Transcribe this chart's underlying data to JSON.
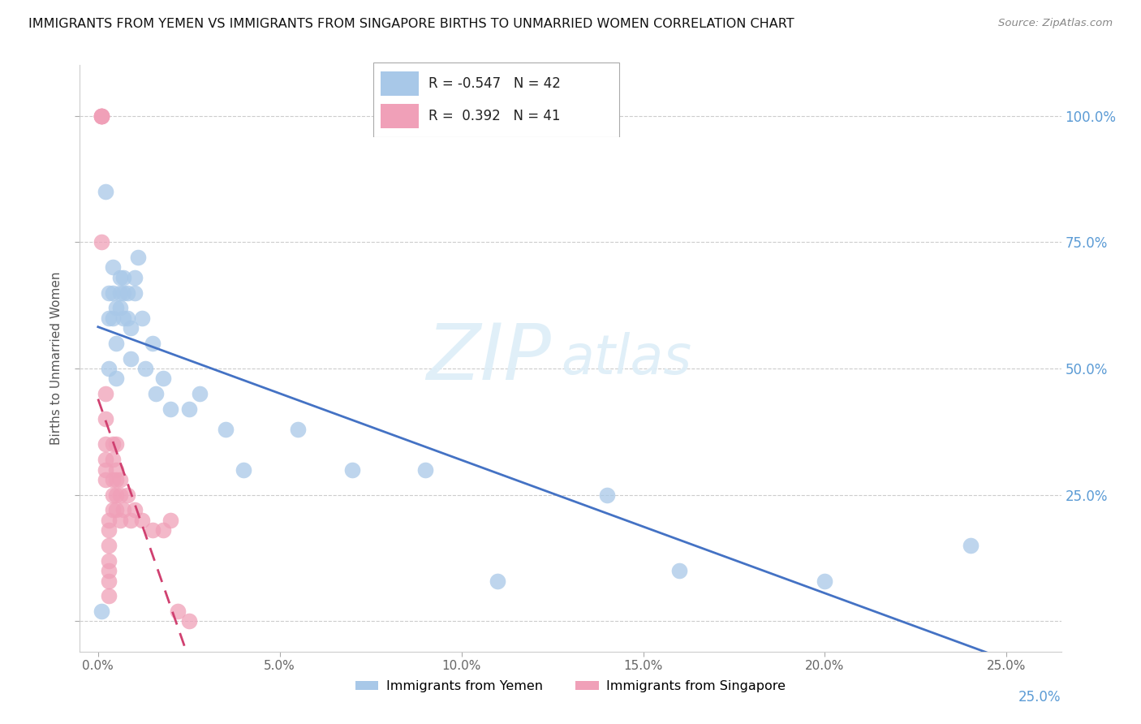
{
  "title": "IMMIGRANTS FROM YEMEN VS IMMIGRANTS FROM SINGAPORE BIRTHS TO UNMARRIED WOMEN CORRELATION CHART",
  "source": "Source: ZipAtlas.com",
  "ylabel": "Births to Unmarried Women",
  "x_ticks": [
    0.0,
    0.05,
    0.1,
    0.15,
    0.2,
    0.25
  ],
  "x_tick_labels": [
    "0.0%",
    "5.0%",
    "10.0%",
    "15.0%",
    "20.0%",
    "25.0%"
  ],
  "y_ticks": [
    0.0,
    0.25,
    0.5,
    0.75,
    1.0
  ],
  "xlim": [
    -0.005,
    0.265
  ],
  "ylim": [
    -0.06,
    1.1
  ],
  "blue_color": "#a8c8e8",
  "pink_color": "#f0a0b8",
  "blue_line_color": "#4472c4",
  "pink_line_color": "#d04070",
  "right_axis_color": "#5b9bd5",
  "grid_color": "#cccccc",
  "watermark": "ZIPatlas",
  "R_yemen": "-0.547",
  "N_yemen": "42",
  "R_singapore": " 0.392",
  "N_singapore": "41",
  "yemen_x": [
    0.001,
    0.002,
    0.003,
    0.003,
    0.003,
    0.004,
    0.004,
    0.004,
    0.005,
    0.005,
    0.005,
    0.006,
    0.006,
    0.006,
    0.007,
    0.007,
    0.007,
    0.008,
    0.008,
    0.009,
    0.009,
    0.01,
    0.01,
    0.011,
    0.012,
    0.013,
    0.015,
    0.016,
    0.018,
    0.02,
    0.025,
    0.028,
    0.035,
    0.04,
    0.055,
    0.07,
    0.09,
    0.11,
    0.14,
    0.16,
    0.2,
    0.24
  ],
  "yemen_y": [
    0.02,
    0.85,
    0.5,
    0.6,
    0.65,
    0.6,
    0.65,
    0.7,
    0.48,
    0.55,
    0.62,
    0.62,
    0.65,
    0.68,
    0.6,
    0.65,
    0.68,
    0.6,
    0.65,
    0.52,
    0.58,
    0.65,
    0.68,
    0.72,
    0.6,
    0.5,
    0.55,
    0.45,
    0.48,
    0.42,
    0.42,
    0.45,
    0.38,
    0.3,
    0.38,
    0.3,
    0.3,
    0.08,
    0.25,
    0.1,
    0.08,
    0.15
  ],
  "singapore_x": [
    0.001,
    0.001,
    0.001,
    0.001,
    0.001,
    0.002,
    0.002,
    0.002,
    0.002,
    0.002,
    0.002,
    0.003,
    0.003,
    0.003,
    0.003,
    0.003,
    0.003,
    0.003,
    0.004,
    0.004,
    0.004,
    0.004,
    0.004,
    0.005,
    0.005,
    0.005,
    0.005,
    0.005,
    0.006,
    0.006,
    0.006,
    0.007,
    0.008,
    0.009,
    0.01,
    0.012,
    0.015,
    0.018,
    0.02,
    0.022,
    0.025
  ],
  "singapore_y": [
    1.0,
    1.0,
    1.0,
    1.0,
    0.75,
    0.28,
    0.3,
    0.32,
    0.35,
    0.4,
    0.45,
    0.05,
    0.08,
    0.1,
    0.12,
    0.15,
    0.18,
    0.2,
    0.22,
    0.25,
    0.28,
    0.32,
    0.35,
    0.22,
    0.25,
    0.28,
    0.3,
    0.35,
    0.2,
    0.25,
    0.28,
    0.22,
    0.25,
    0.2,
    0.22,
    0.2,
    0.18,
    0.18,
    0.2,
    0.02,
    0.0
  ]
}
